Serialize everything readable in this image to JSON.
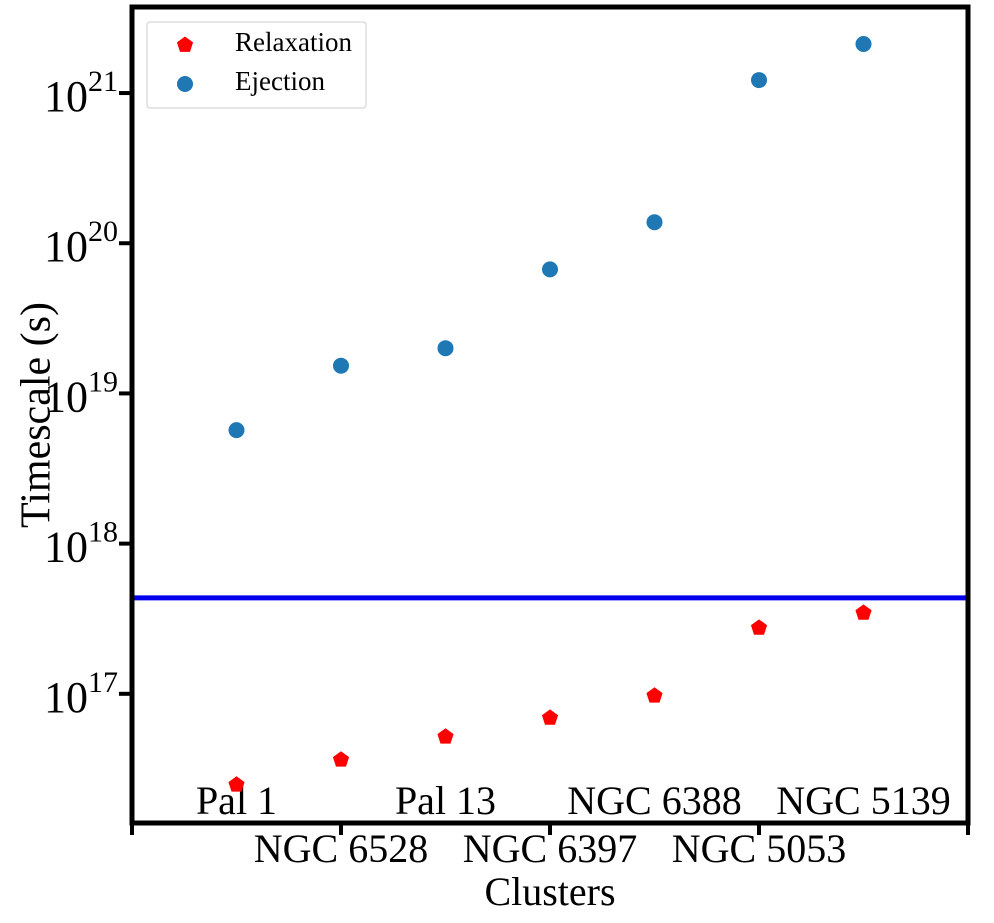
{
  "chart_data": {
    "type": "scatter",
    "xlabel": "Clusters",
    "ylabel": "Timescale (s)",
    "categories": [
      "Pal 1",
      "NGC 6528",
      "Pal 13",
      "NGC 6397",
      "NGC 6388",
      "NGC 5053",
      "NGC 5139"
    ],
    "series": [
      {
        "name": "Relaxation",
        "color": "#ff0000",
        "marker": "pentagon",
        "values": [
          2.48e+16,
          3.64e+16,
          5.18e+16,
          6.92e+16,
          9.7e+16,
          2.75e+17,
          3.46e+17
        ]
      },
      {
        "name": "Ejection",
        "color": "#1f77b4",
        "marker": "circle",
        "values": [
          5.7e+18,
          1.53e+19,
          2e+19,
          6.7e+19,
          1.38e+20,
          1.22e+21,
          2.12e+21
        ]
      }
    ],
    "hline": {
      "value": 4.35e+17,
      "color": "#0000ee"
    },
    "xlim": [
      -1,
      7
    ],
    "xticks": [
      -1,
      1,
      3,
      5,
      7
    ],
    "ylim": [
      1.38e+16,
      3.74e+21
    ],
    "log_y": true,
    "yticks": [
      {
        "value": 1e+17,
        "label": "10^17"
      },
      {
        "value": 1e+18,
        "label": "10^18"
      },
      {
        "value": 1e+19,
        "label": "10^19"
      },
      {
        "value": 1e+20,
        "label": "10^20"
      },
      {
        "value": 1e+21,
        "label": "10^21"
      }
    ],
    "legend": "upper left"
  }
}
